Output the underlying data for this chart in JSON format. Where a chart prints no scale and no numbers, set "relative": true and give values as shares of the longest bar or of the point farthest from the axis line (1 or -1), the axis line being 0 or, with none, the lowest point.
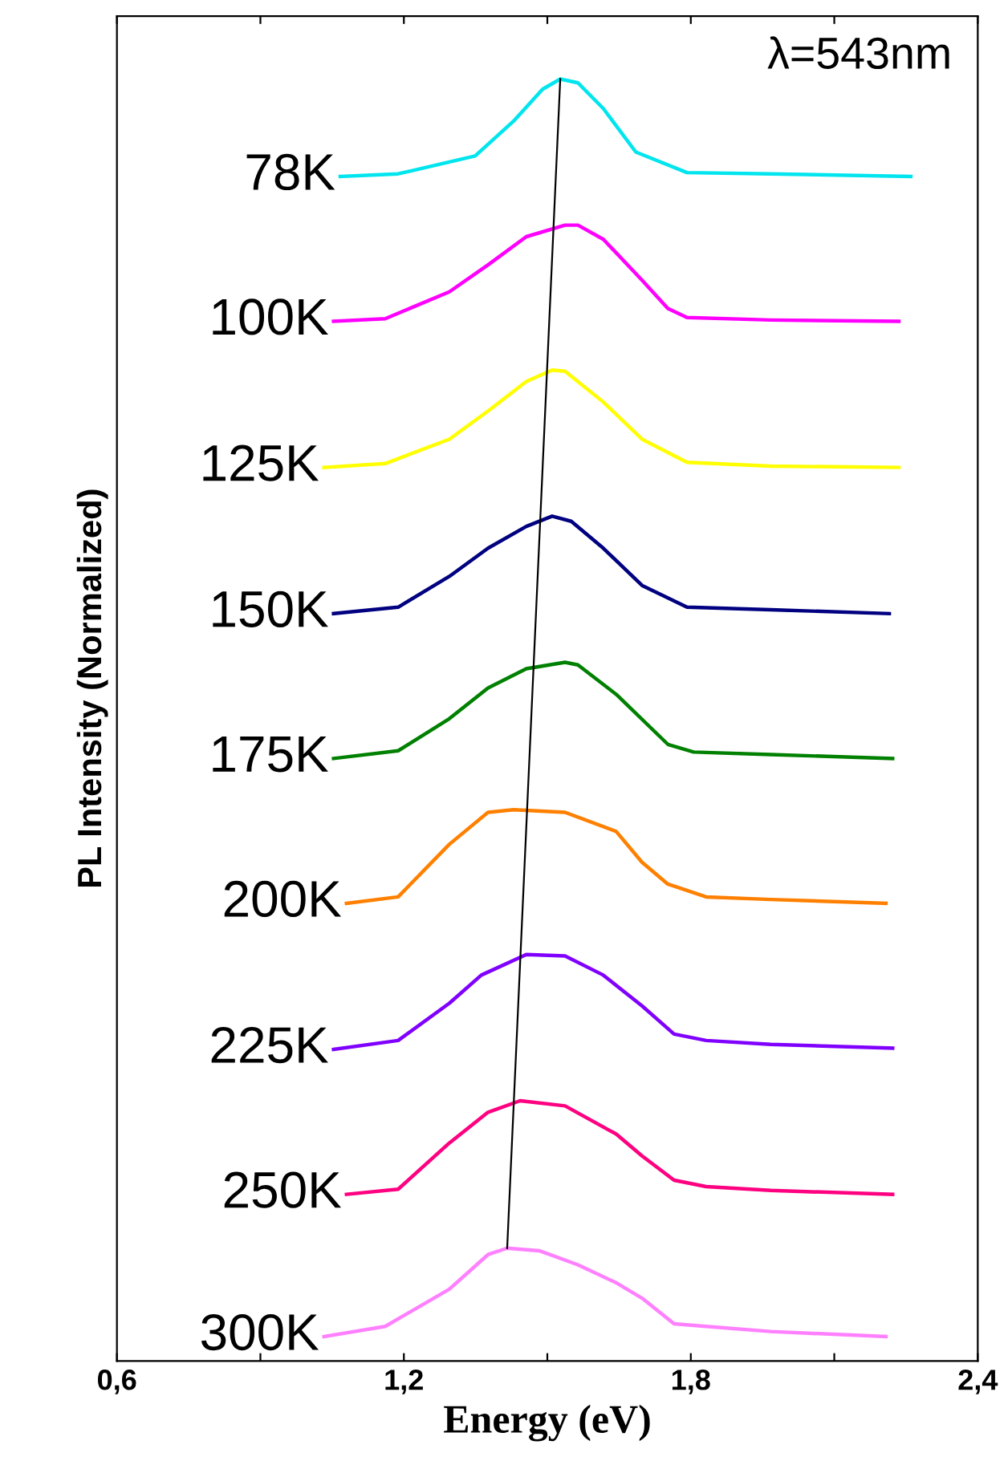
{
  "chart_data": {
    "type": "line",
    "relative": true,
    "xlabel": "Energy (eV)",
    "ylabel": "PL Intensity (Normalized)",
    "annotations": [
      "λ=543nm"
    ],
    "xlim": [
      0.6,
      2.4
    ],
    "xticks": [
      {
        "value": 0.6,
        "label": "0,6"
      },
      {
        "value": 0.9,
        "label": null
      },
      {
        "value": 1.2,
        "label": "1,2"
      },
      {
        "value": 1.5,
        "label": null
      },
      {
        "value": 1.8,
        "label": "1,8"
      },
      {
        "value": 2.1,
        "label": null
      },
      {
        "value": 2.4,
        "label": "2,4"
      }
    ],
    "tick_labels": "x",
    "grid": false,
    "legend": false,
    "marker": "none",
    "line_style": "solid",
    "series": [
      {
        "name": "78K",
        "color": "#00e5ee",
        "x": [
          1.067,
          1.188,
          1.349,
          1.429,
          1.49,
          1.527,
          1.564,
          1.617,
          1.685,
          1.792,
          1.967,
          2.26
        ],
        "values": [
          0.924,
          0.926,
          0.94,
          0.967,
          0.992,
          1.0,
          0.997,
          0.977,
          0.943,
          0.927,
          0.926,
          0.924
        ]
      },
      {
        "name": "100K",
        "color": "#ff00ff",
        "x": [
          1.053,
          1.161,
          1.295,
          1.376,
          1.456,
          1.537,
          1.564,
          1.617,
          1.698,
          1.752,
          1.792,
          1.967,
          2.235
        ],
        "values": [
          0.811,
          0.813,
          0.834,
          0.855,
          0.877,
          0.886,
          0.886,
          0.875,
          0.843,
          0.821,
          0.814,
          0.812,
          0.811
        ]
      },
      {
        "name": "125K",
        "color": "#ffff00",
        "x": [
          1.033,
          1.161,
          1.295,
          1.376,
          1.456,
          1.51,
          1.537,
          1.617,
          1.698,
          1.792,
          1.967,
          2.235
        ],
        "values": [
          0.697,
          0.7,
          0.719,
          0.741,
          0.764,
          0.773,
          0.772,
          0.748,
          0.719,
          0.701,
          0.698,
          0.697
        ]
      },
      {
        "name": "150K",
        "color": "#000080",
        "x": [
          1.053,
          1.188,
          1.295,
          1.376,
          1.456,
          1.51,
          1.55,
          1.617,
          1.698,
          1.792,
          1.967,
          2.215
        ],
        "values": [
          0.583,
          0.588,
          0.612,
          0.634,
          0.651,
          0.659,
          0.655,
          0.634,
          0.605,
          0.588,
          0.586,
          0.583
        ]
      },
      {
        "name": "175K",
        "color": "#008000",
        "x": [
          1.053,
          1.188,
          1.295,
          1.376,
          1.456,
          1.537,
          1.564,
          1.644,
          1.752,
          1.806,
          1.967,
          2.222
        ],
        "values": [
          0.47,
          0.476,
          0.501,
          0.525,
          0.54,
          0.545,
          0.543,
          0.52,
          0.481,
          0.475,
          0.473,
          0.47
        ]
      },
      {
        "name": "200K",
        "color": "#ff8000",
        "x": [
          1.08,
          1.188,
          1.295,
          1.376,
          1.429,
          1.537,
          1.644,
          1.698,
          1.752,
          1.832,
          1.967,
          2.208
        ],
        "values": [
          0.357,
          0.362,
          0.403,
          0.428,
          0.43,
          0.428,
          0.413,
          0.389,
          0.372,
          0.362,
          0.36,
          0.357
        ]
      },
      {
        "name": "225K",
        "color": "#8000ff",
        "x": [
          1.053,
          1.188,
          1.295,
          1.362,
          1.456,
          1.537,
          1.617,
          1.698,
          1.765,
          1.832,
          1.967,
          2.222
        ],
        "values": [
          0.243,
          0.25,
          0.279,
          0.301,
          0.317,
          0.316,
          0.301,
          0.277,
          0.255,
          0.25,
          0.247,
          0.244
        ]
      },
      {
        "name": "250K",
        "color": "#ff0080",
        "x": [
          1.08,
          1.188,
          1.295,
          1.376,
          1.443,
          1.537,
          1.644,
          1.698,
          1.765,
          1.832,
          1.967,
          2.222
        ],
        "values": [
          0.13,
          0.134,
          0.17,
          0.194,
          0.203,
          0.199,
          0.177,
          0.16,
          0.141,
          0.136,
          0.133,
          0.13
        ]
      },
      {
        "name": "300K",
        "color": "#ff80ff",
        "x": [
          1.033,
          1.161,
          1.295,
          1.376,
          1.416,
          1.483,
          1.564,
          1.644,
          1.698,
          1.765,
          1.832,
          1.967,
          2.208
        ],
        "values": [
          0.019,
          0.027,
          0.056,
          0.083,
          0.088,
          0.086,
          0.075,
          0.061,
          0.049,
          0.029,
          0.027,
          0.023,
          0.019
        ]
      },
      {
        "type": "line",
        "color": "#000000",
        "x": [
          1.527,
          1.416
        ],
        "values": [
          1.0,
          0.088
        ]
      }
    ]
  }
}
